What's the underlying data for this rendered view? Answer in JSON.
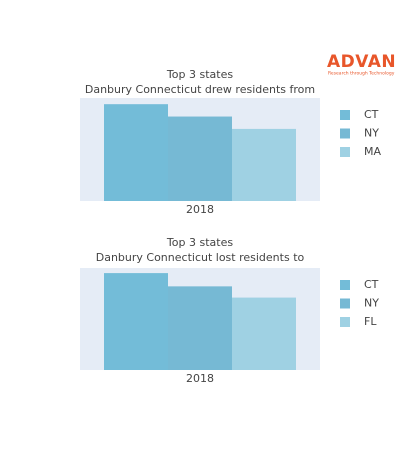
{
  "logo": {
    "text": "ADVAN",
    "tagline": "Research through Technology"
  },
  "chart_data": [
    {
      "type": "bar",
      "title": "Top 3 states",
      "subtitle": "Danbury Connecticut drew residents from",
      "categories": [
        "2018"
      ],
      "ylim": [
        0,
        100
      ],
      "series": [
        {
          "name": "CT",
          "color": "#73bcd8",
          "values": [
            94
          ]
        },
        {
          "name": "NY",
          "color": "#76b9d4",
          "values": [
            82
          ]
        },
        {
          "name": "MA",
          "color": "#9fd1e3",
          "values": [
            70
          ]
        }
      ]
    },
    {
      "type": "bar",
      "title": "Top 3 states",
      "subtitle": "Danbury Connecticut lost residents to",
      "categories": [
        "2018"
      ],
      "ylim": [
        0,
        100
      ],
      "series": [
        {
          "name": "CT",
          "color": "#73bcd8",
          "values": [
            95
          ]
        },
        {
          "name": "NY",
          "color": "#76b9d4",
          "values": [
            82
          ]
        },
        {
          "name": "FL",
          "color": "#9fd1e3",
          "values": [
            71
          ]
        }
      ]
    }
  ]
}
